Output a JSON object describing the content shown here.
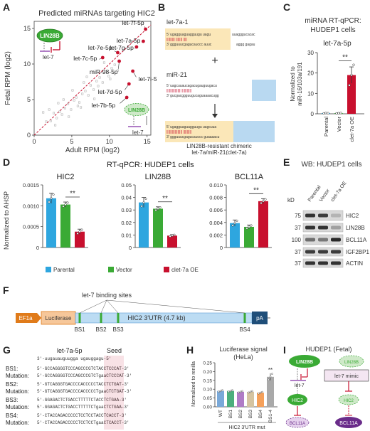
{
  "panel_labels": {
    "a": "A",
    "b": "B",
    "c": "C",
    "d": "D",
    "e": "E",
    "f": "F",
    "g": "G",
    "h": "H",
    "i": "I"
  },
  "A": {
    "title": "Predicted miRNAs targeting HIC2",
    "xlabel": "Adult RPM (log2)",
    "ylabel": "Fetal RPM (log2)",
    "xticks": [
      "0",
      "5",
      "10",
      "15"
    ],
    "yticks": [
      "0",
      "5",
      "10",
      "15"
    ],
    "inset_left": {
      "protein": "LIN28B",
      "mirna": "let-7"
    },
    "inset_right": {
      "protein": "LIN28B",
      "mirna": "let-7"
    },
    "colors": {
      "highlight": "#c8102e",
      "background": "#b0b0b0",
      "green": "#3aaa35"
    }
  },
  "chart_data": [
    {
      "type": "scatter",
      "title": "Predicted miRNAs targeting HIC2",
      "xlabel": "Adult RPM (log2)",
      "ylabel": "Fetal RPM (log2)",
      "xlim": [
        0,
        15.5
      ],
      "ylim": [
        0,
        16
      ],
      "highlighted": [
        {
          "name": "let-7f-5p",
          "x": 14.8,
          "y": 14.9
        },
        {
          "name": "let-7a-5p",
          "x": 14.5,
          "y": 13.2
        },
        {
          "name": "let-7g-5p",
          "x": 13.6,
          "y": 12.4
        },
        {
          "name": "let-7e-5p",
          "x": 11.1,
          "y": 11.6
        },
        {
          "name": "let-7c-5p",
          "x": 9.1,
          "y": 10.9
        },
        {
          "name": "miR-98-5p",
          "x": 11.3,
          "y": 10.4
        },
        {
          "name": "let-7i-5p",
          "x": 13.1,
          "y": 9.0
        },
        {
          "name": "let-7d-5p",
          "x": 12.6,
          "y": 7.2
        },
        {
          "name": "let-7b-5p",
          "x": 12.3,
          "y": 5.3
        }
      ],
      "background_points": [
        [
          1.6,
          1.9
        ],
        [
          2.2,
          2.0
        ],
        [
          2.6,
          3.1
        ],
        [
          3.0,
          2.4
        ],
        [
          3.4,
          3.3
        ],
        [
          3.7,
          2.9
        ],
        [
          4.1,
          3.8
        ],
        [
          4.5,
          4.4
        ],
        [
          4.9,
          3.6
        ],
        [
          5.3,
          4.9
        ],
        [
          5.6,
          5.3
        ],
        [
          6.0,
          4.6
        ],
        [
          6.4,
          5.8
        ],
        [
          6.8,
          6.2
        ],
        [
          7.2,
          5.6
        ],
        [
          7.5,
          7.0
        ],
        [
          7.9,
          6.4
        ],
        [
          8.3,
          7.6
        ],
        [
          8.7,
          8.1
        ],
        [
          9.1,
          7.4
        ],
        [
          9.5,
          8.9
        ],
        [
          9.9,
          8.3
        ],
        [
          10.3,
          9.4
        ],
        [
          10.7,
          9.9
        ],
        [
          11.1,
          9.1
        ],
        [
          1.2,
          3.2
        ],
        [
          2.8,
          1.4
        ],
        [
          3.9,
          5.0
        ],
        [
          5.1,
          6.3
        ],
        [
          6.2,
          3.9
        ],
        [
          7.0,
          8.2
        ],
        [
          8.0,
          5.1
        ],
        [
          9.3,
          10.2
        ],
        [
          2.0,
          3.6
        ],
        [
          4.6,
          2.6
        ],
        [
          6.6,
          7.4
        ],
        [
          8.5,
          6.9
        ],
        [
          10.1,
          7.9
        ],
        [
          5.8,
          4.1
        ],
        [
          3.2,
          4.5
        ]
      ]
    },
    {
      "type": "bar",
      "panel": "C",
      "title": "let-7a-5p",
      "ylabel": "Normalized to miR-16/103a/191",
      "categories": [
        "Parental",
        "Vector",
        "clet-7a OE"
      ],
      "values": [
        0.3,
        0.3,
        19
      ],
      "errors": [
        0.2,
        0.2,
        4
      ],
      "points": [
        [
          0.2,
          0.4,
          0.3
        ],
        [
          0.2,
          0.3,
          0.4
        ],
        [
          14,
          19,
          24
        ]
      ],
      "ylim": [
        0,
        30
      ],
      "yticks": [
        0,
        10,
        20,
        30
      ],
      "significance": "**"
    },
    {
      "type": "bar",
      "panel": "D",
      "title": "HIC2",
      "ylabel": "Normalized to AHSP",
      "categories": [
        "Parental",
        "Vector",
        "clet-7a OE"
      ],
      "values": [
        0.00118,
        0.00103,
        0.00038
      ],
      "errors": [
        0.00012,
        6e-05,
        6e-05
      ],
      "ylim": [
        0,
        0.0015
      ],
      "yticks": [
        "0",
        "0.0005",
        "0.0010",
        "0.0015"
      ],
      "significance": "**"
    },
    {
      "type": "bar",
      "panel": "D",
      "title": "LIN28B",
      "categories": [
        "Parental",
        "Vector",
        "clet-7a OE"
      ],
      "values": [
        0.036,
        0.031,
        0.0095
      ],
      "errors": [
        0.004,
        0.0015,
        0.0008
      ],
      "ylim": [
        0,
        0.05
      ],
      "yticks": [
        "0",
        "0.01",
        "0.02",
        "0.03",
        "0.04",
        "0.05"
      ],
      "significance": "**"
    },
    {
      "type": "bar",
      "panel": "D",
      "title": "BCL11A",
      "categories": [
        "Parental",
        "Vector",
        "clet-7a OE"
      ],
      "values": [
        0.0039,
        0.0033,
        0.0074
      ],
      "errors": [
        0.0005,
        0.0003,
        0.0004
      ],
      "ylim": [
        0,
        0.01
      ],
      "yticks": [
        "0",
        "0.002",
        "0.004",
        "0.006",
        "0.008",
        "0.010"
      ],
      "significance": "**"
    },
    {
      "type": "bar",
      "panel": "H",
      "title": "Luciferase signal",
      "subtitle": "(HeLa)",
      "ylabel": "Normalized to renilla",
      "xlabel": "HIC2 3'UTR mut",
      "categories": [
        "WT",
        "BS1",
        "BS2",
        "BS3",
        "BS4",
        "BS1-4"
      ],
      "values": [
        0.09,
        0.09,
        0.085,
        0.085,
        0.08,
        0.17
      ],
      "errors": [
        0.005,
        0.005,
        0.005,
        0.005,
        0.005,
        0.02
      ],
      "ylim": [
        0,
        0.25
      ],
      "yticks": [
        "0.00",
        "0.05",
        "0.10",
        "0.15",
        "0.20",
        "0.25"
      ],
      "significance": "**"
    }
  ],
  "B": {
    "let7a1": "let-7a-1",
    "plus": "+",
    "mir21": "miR-21",
    "arrow": "↓",
    "caption1": "LIN28B-resistant chimeric",
    "caption2": "let-7a/miR-21(clet-7a)",
    "colors": {
      "yellow": "#fbe7b8",
      "blue": "#b9d9f1"
    }
  },
  "C": {
    "header1": "miRNA RT-qPCR:",
    "header2": "HUDEP1 cells",
    "subtitle": "let-7a-5p",
    "ylabel1": "Normalized to",
    "ylabel2": "miR-16/103a/191",
    "yticks": [
      "0",
      "10",
      "20",
      "30"
    ],
    "cats": [
      "Parental",
      "Vector",
      "clet-7a OE"
    ],
    "sig": "**"
  },
  "D": {
    "header": "RT-qPCR: HUDEP1 cells",
    "ylabel": "Normalized to AHSP",
    "titles": [
      "HIC2",
      "LIN28B",
      "BCL11A"
    ],
    "legend": [
      "Parental",
      "Vector",
      "clet-7a OE"
    ],
    "sig": "**",
    "colors": {
      "parental": "#2ea6df",
      "vector": "#3aaa35",
      "oe": "#c8102e"
    }
  },
  "E": {
    "header": "WB: HUDEP1 cells",
    "kd": "kD",
    "lanes": [
      "Parental",
      "Vector",
      "clet-7a OE"
    ],
    "markers": [
      "75",
      "37",
      "100",
      "37",
      "37"
    ],
    "bands": [
      "HIC2",
      "LIN28B",
      "BCL11A",
      "IGF2BP1",
      "ACTIN"
    ]
  },
  "F": {
    "ef1a": "EF1a",
    "luciferase": "Luciferase",
    "utr": "HIC2 3'UTR (4.7 kb)",
    "pa": "pA",
    "sites_title": "let-7 binding sites",
    "bs": [
      "BS1",
      "BS2",
      "BS3",
      "BS4"
    ]
  },
  "G": {
    "mirna": "let-7a-5p",
    "seed": "Seed",
    "mirseq": "3'-uugauauguugga ugauggagu-5'",
    "rows": [
      {
        "label": "BS1:",
        "wt": "5'-GCCAGGGGTCCCAGCCCGTCTACCTCCCAT-3'",
        "mut": "5'-GCCAGGGGTCCCAGCCCGTCTgaaCTCCCAT-3'"
      },
      {
        "label": "BS2:",
        "wt": "5'-GTCAGGGTGACCCCACCCCCTACCTCTGAT-3'",
        "mut": "5'-GTCAGGGTGACCCCACCCCCTgaaCTCTGAT-3'"
      },
      {
        "label": "BS3:",
        "wt": "5'-GGAGACTCTGACCTTTTTCTACCTCTGAA-3'",
        "mut": "5'-GGAGACTCTGACCTTTTTCTgaaCTCTGAA-3'"
      },
      {
        "label": "BS4:",
        "wt": "5'-CTACCAGACCCCCTCCTCCTACCTCACCT-3'",
        "mut": "5'-CTACCAGACCCCCTCCTCCTgaaCTCACCT-3'"
      }
    ],
    "mutation": "Mutation:"
  },
  "H": {
    "title": "Luciferase signal",
    "subtitle": "(HeLa)",
    "ylabel": "Normalized to renilla",
    "xlabel": "HIC2 3'UTR mut",
    "cats": [
      "WT",
      "BS1",
      "BS2",
      "BS3",
      "BS4",
      "BS1-4"
    ],
    "yticks": [
      "0.00",
      "0.05",
      "0.10",
      "0.15",
      "0.20",
      "0.25"
    ],
    "sig": "**",
    "colors": [
      "#7aa9d9",
      "#4caf7c",
      "#b07cc6",
      "#d5c4a1",
      "#f5a05a",
      "#a9a9a9"
    ]
  },
  "I": {
    "title": "HUDEP1 (Fetal)",
    "lin28b_l": "LIN28B",
    "lin28b_r": "LIN28B",
    "let7": "let-7",
    "mimic": "let-7 mimic",
    "hic2_l": "HIC2",
    "hic2_r": "HIC2",
    "bcl_l": "BCL11A",
    "bcl_r": "BCL11A",
    "colors": {
      "green": "#3aaa35",
      "purple": "#6a2c8a",
      "red": "#c8102e",
      "lightgreen": "#cfe9c9",
      "lightpurple": "#e6d2ee"
    }
  }
}
